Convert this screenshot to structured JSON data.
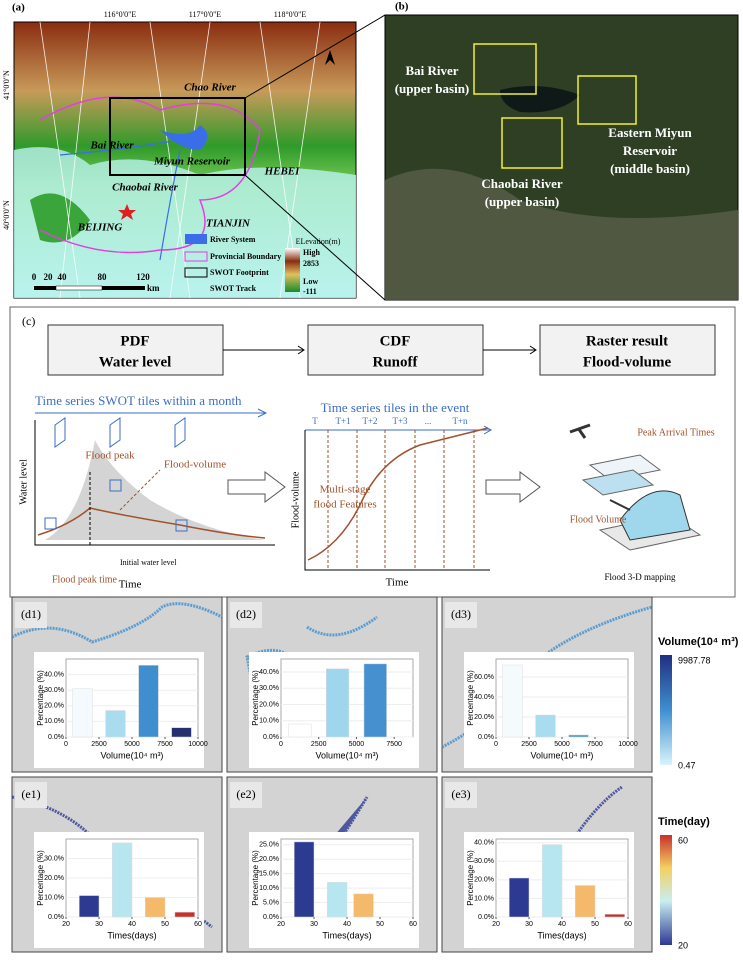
{
  "panel_a": {
    "label": "(a)",
    "lon_labels": [
      "116°0'0\"E",
      "117°0'0\"E",
      "118°0'0\"E"
    ],
    "lat_labels": [
      "41°0'0\"N",
      "40°0'0\"N"
    ],
    "places": [
      "Chao River",
      "Bai River",
      "Miyun Reservoir",
      "HEBEI",
      "Chaobai River",
      "BEIJING",
      "TIANJIN"
    ],
    "legend": [
      "River System",
      "Provincial Boundary",
      "SWOT Footprint",
      "SWOT Track"
    ],
    "elevation": {
      "title": "ELevation(m)",
      "high_label": "High",
      "high": 2853,
      "low_label": "Low",
      "low": -111
    },
    "scale": {
      "labels": [
        "0",
        "20",
        "40",
        "80",
        "120"
      ],
      "unit": "km"
    }
  },
  "panel_b": {
    "label": "(b)",
    "sites": [
      [
        "Bai River",
        "(upper basin)"
      ],
      [
        "Eastern Miyun",
        "Reservoir",
        "(middle basin)"
      ],
      [
        "Chaobai River",
        "(upper basin)"
      ]
    ]
  },
  "panel_c": {
    "label": "(c)",
    "steps": [
      [
        "PDF",
        "Water level"
      ],
      [
        "CDF",
        "Runoff"
      ],
      [
        "Raster result",
        "Flood-volume"
      ]
    ],
    "left": {
      "title": "Time series SWOT tiles within a month",
      "peak": "Flood peak",
      "volume": "Flood-volume",
      "ylabel": "Water level",
      "initial": "Initial water level",
      "peak_time": "Flood peak time",
      "xlabel": "Time"
    },
    "middle": {
      "title": "Time series tiles in the event",
      "tiles": [
        "T",
        "T+1",
        "T+2",
        "T+3",
        "...",
        "T+n"
      ],
      "ylabel": "Flood-volume",
      "features": [
        "Multi-stage",
        "flood Features"
      ],
      "xlabel": "Time"
    },
    "right": {
      "peak": "Peak Arrival Times",
      "volume": "Flood Volume",
      "caption": "Flood 3-D mapping"
    }
  },
  "chart_data": [
    {
      "type": "bar",
      "title": "(d1)",
      "x": [
        1250,
        3750,
        6250,
        8750
      ],
      "values": [
        31,
        17,
        46,
        6
      ],
      "colors": [
        "#f4fafd",
        "#a9dcef",
        "#3f8fcf",
        "#26306e"
      ],
      "xlim": [
        0,
        10000
      ],
      "xticks": [
        0,
        2500,
        5000,
        7500,
        10000
      ],
      "ylim": [
        0,
        50
      ],
      "yticks": [
        {
          "value": 0,
          "label": "0.0%"
        },
        {
          "value": 10,
          "label": "10.0%"
        },
        {
          "value": 20,
          "label": "20.0%"
        },
        {
          "value": 30,
          "label": "30.0%"
        },
        {
          "value": 40,
          "label": "40.0%"
        }
      ],
      "xlabel": "Volume(10⁴ m³)",
      "ylabel": "Percentage (%)"
    },
    {
      "type": "bar",
      "title": "(d2)",
      "x": [
        1250,
        3750,
        6250
      ],
      "values": [
        8,
        42,
        45
      ],
      "colors": [
        "#ffffff",
        "#9fd6ee",
        "#4690d0"
      ],
      "xlim": [
        0,
        8750
      ],
      "xticks": [
        0,
        2500,
        5000,
        7500
      ],
      "ylim": [
        0,
        48
      ],
      "yticks": [
        {
          "value": 0,
          "label": "0.0%"
        },
        {
          "value": 10,
          "label": "10.0%"
        },
        {
          "value": 20,
          "label": "20.0%"
        },
        {
          "value": 30,
          "label": "30.0%"
        },
        {
          "value": 40,
          "label": "40.0%"
        }
      ],
      "xlabel": "Volume(10⁴ m³)",
      "ylabel": "Percentage (%)"
    },
    {
      "type": "bar",
      "title": "(d3)",
      "x": [
        1250,
        3750,
        6250
      ],
      "values": [
        72,
        22,
        2
      ],
      "colors": [
        "#f5fbfd",
        "#a9dcef",
        "#4a93cf"
      ],
      "xlim": [
        0,
        10000
      ],
      "xticks": [
        0,
        2500,
        5000,
        7500,
        10000
      ],
      "ylim": [
        0,
        78
      ],
      "yticks": [
        {
          "value": 0,
          "label": "0.0%"
        },
        {
          "value": 20,
          "label": "20.0%"
        },
        {
          "value": 40,
          "label": "40.0%"
        },
        {
          "value": 60,
          "label": "60.0%"
        }
      ],
      "xlabel": "Volume(10⁴ m³)",
      "ylabel": "Percentage (%)"
    },
    {
      "type": "bar",
      "title": "(e1)",
      "x": [
        27,
        37,
        47,
        56
      ],
      "values": [
        11,
        38,
        10,
        2.5
      ],
      "colors": [
        "#2d3a92",
        "#b8e6f0",
        "#f4b96a",
        "#c9302c"
      ],
      "xlim": [
        20,
        60
      ],
      "xticks": [
        20,
        30,
        40,
        50,
        60
      ],
      "ylim": [
        0,
        40
      ],
      "yticks": [
        {
          "value": 0,
          "label": "0.0%"
        },
        {
          "value": 10,
          "label": "10.0%"
        },
        {
          "value": 20,
          "label": "20.0%"
        },
        {
          "value": 30,
          "label": "30.0%"
        }
      ],
      "xlabel": "Times(days)",
      "ylabel": "Percentage (%)"
    },
    {
      "type": "bar",
      "title": "(e2)",
      "x": [
        27,
        37,
        45
      ],
      "values": [
        26,
        12,
        8
      ],
      "colors": [
        "#2d3a92",
        "#b8e6f0",
        "#f4b96a"
      ],
      "xlim": [
        20,
        60
      ],
      "xticks": [
        20,
        30,
        40,
        50,
        60
      ],
      "ylim": [
        0,
        27
      ],
      "yticks": [
        {
          "value": 0,
          "label": "0.0%"
        },
        {
          "value": 5,
          "label": "5.0%"
        },
        {
          "value": 10,
          "label": "10.0%"
        },
        {
          "value": 15,
          "label": "15.0%"
        },
        {
          "value": 20,
          "label": "20.0%"
        },
        {
          "value": 25,
          "label": "25.0%"
        }
      ],
      "xlabel": "Times(days)",
      "ylabel": "Percentage (%)"
    },
    {
      "type": "bar",
      "title": "(e3)",
      "x": [
        27,
        37,
        47,
        56
      ],
      "values": [
        21,
        39,
        17,
        1.5
      ],
      "colors": [
        "#2d3a92",
        "#b8e6f0",
        "#f4b96a",
        "#c9302c"
      ],
      "xlim": [
        20,
        60
      ],
      "xticks": [
        20,
        30,
        40,
        50,
        60
      ],
      "ylim": [
        0,
        42
      ],
      "yticks": [
        {
          "value": 0,
          "label": "0.0%"
        },
        {
          "value": 10,
          "label": "10.0%"
        },
        {
          "value": 20,
          "label": "20.0%"
        },
        {
          "value": 30,
          "label": "30.0%"
        },
        {
          "value": 40,
          "label": "40.0%"
        }
      ],
      "xlabel": "Times(days)",
      "ylabel": "Percentage (%)"
    }
  ],
  "legend_volume": {
    "title": "Volume(10⁴ m³)",
    "max": 9987.78,
    "min": 0.47
  },
  "legend_time": {
    "title": "Time(day)",
    "max": 60,
    "min": 20
  }
}
